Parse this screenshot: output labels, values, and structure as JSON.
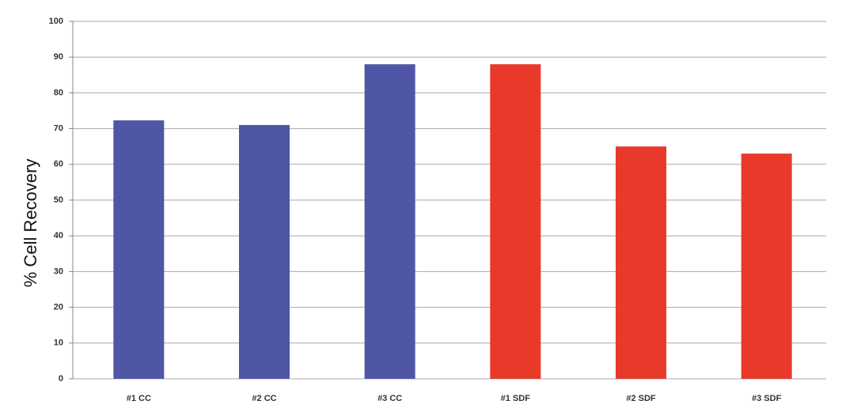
{
  "chart_data": {
    "type": "bar",
    "y_label": "% Cell Recovery",
    "categories": [
      "#1 CC",
      "#2 CC",
      "#3 CC",
      "#1 SDF",
      "#2 SDF",
      "#3 SDF"
    ],
    "values": [
      72.3,
      71,
      88,
      88,
      65,
      63
    ],
    "colors": [
      "#4f56a6",
      "#4f56a6",
      "#4f56a6",
      "#e8392a",
      "#e8392a",
      "#e8392a"
    ],
    "ylim": [
      0,
      100
    ],
    "yticks": [
      0,
      10,
      20,
      30,
      40,
      50,
      60,
      70,
      80,
      90,
      100
    ],
    "grid": true
  }
}
